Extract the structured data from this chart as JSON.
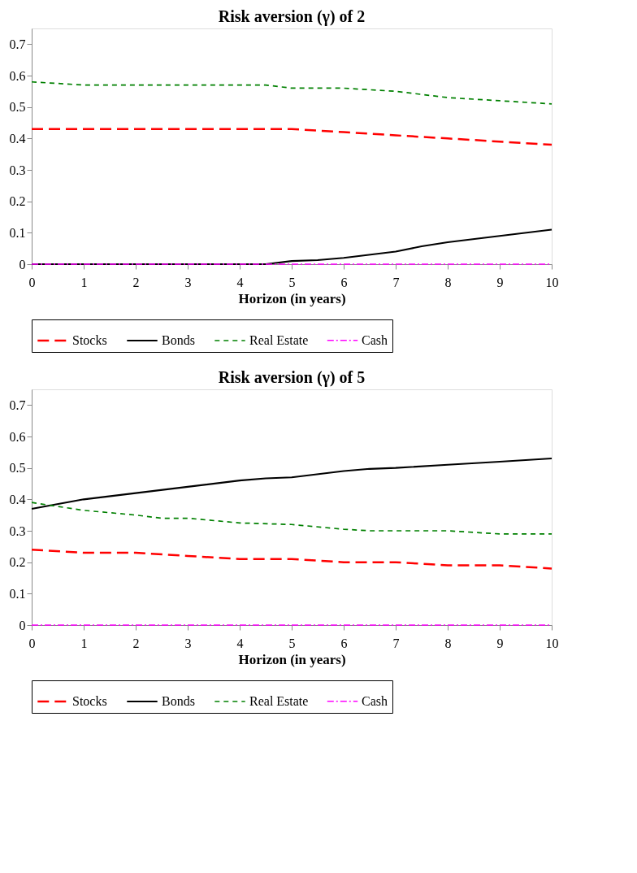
{
  "chart_data": [
    {
      "type": "line",
      "title": "Risk aversion (γ) of 2",
      "xlabel": "Horizon (in years)",
      "xlim": [
        0,
        10
      ],
      "xticks": [
        0,
        1,
        2,
        3,
        4,
        5,
        6,
        7,
        8,
        9,
        10
      ],
      "ylim": [
        0,
        0.75
      ],
      "yticks": [
        0,
        0.1,
        0.2,
        0.3,
        0.4,
        0.5,
        0.6,
        0.7
      ],
      "grid": false,
      "legend": "bottom",
      "series": [
        {
          "name": "Stocks",
          "color": "#ff0000",
          "line_style": "dashed",
          "x": [
            0,
            1,
            2,
            3,
            4,
            5,
            6,
            7,
            8,
            9,
            10
          ],
          "values": [
            0.43,
            0.43,
            0.43,
            0.43,
            0.43,
            0.43,
            0.42,
            0.41,
            0.4,
            0.39,
            0.38
          ]
        },
        {
          "name": "Bonds",
          "color": "#000000",
          "line_style": "solid",
          "x": [
            0,
            1,
            2,
            3,
            4,
            4.5,
            5,
            5.5,
            6,
            7,
            7.5,
            8,
            9,
            10
          ],
          "values": [
            0,
            0,
            0,
            0,
            0,
            0,
            0.01,
            0.013,
            0.02,
            0.04,
            0.057,
            0.07,
            0.09,
            0.11
          ]
        },
        {
          "name": "Real Estate",
          "color": "#008000",
          "line_style": "dotted",
          "x": [
            0,
            1,
            2,
            3,
            4,
            4.5,
            5,
            6,
            7,
            7.5,
            8,
            9,
            10
          ],
          "values": [
            0.58,
            0.57,
            0.57,
            0.57,
            0.57,
            0.57,
            0.56,
            0.56,
            0.55,
            0.54,
            0.53,
            0.52,
            0.51
          ]
        },
        {
          "name": "Cash",
          "color": "#ff00ff",
          "line_style": "dashdot",
          "x": [
            0,
            10
          ],
          "values": [
            0,
            0
          ]
        }
      ]
    },
    {
      "type": "line",
      "title": "Risk aversion (γ) of 5",
      "xlabel": "Horizon (in years)",
      "xlim": [
        0,
        10
      ],
      "xticks": [
        0,
        1,
        2,
        3,
        4,
        5,
        6,
        7,
        8,
        9,
        10
      ],
      "ylim": [
        0,
        0.75
      ],
      "yticks": [
        0,
        0.1,
        0.2,
        0.3,
        0.4,
        0.5,
        0.6,
        0.7
      ],
      "grid": false,
      "legend": "bottom",
      "series": [
        {
          "name": "Stocks",
          "color": "#ff0000",
          "line_style": "dashed",
          "x": [
            0,
            1,
            2,
            3,
            4,
            5,
            6,
            7,
            8,
            9,
            10
          ],
          "values": [
            0.24,
            0.23,
            0.23,
            0.22,
            0.21,
            0.21,
            0.2,
            0.2,
            0.19,
            0.19,
            0.18
          ]
        },
        {
          "name": "Bonds",
          "color": "#000000",
          "line_style": "solid",
          "x": [
            0,
            1,
            2,
            3,
            4,
            4.5,
            5,
            6,
            6.5,
            7,
            8,
            9,
            10
          ],
          "values": [
            0.37,
            0.4,
            0.42,
            0.44,
            0.46,
            0.467,
            0.47,
            0.49,
            0.497,
            0.5,
            0.51,
            0.52,
            0.53
          ]
        },
        {
          "name": "Real Estate",
          "color": "#008000",
          "line_style": "dotted",
          "x": [
            0,
            1,
            2,
            2.5,
            3,
            4,
            5,
            6,
            6.5,
            7,
            8,
            9,
            10
          ],
          "values": [
            0.39,
            0.365,
            0.35,
            0.34,
            0.34,
            0.325,
            0.32,
            0.305,
            0.3,
            0.3,
            0.3,
            0.29,
            0.29
          ]
        },
        {
          "name": "Cash",
          "color": "#ff00ff",
          "line_style": "dashdot",
          "x": [
            0,
            10
          ],
          "values": [
            0,
            0
          ]
        }
      ]
    }
  ]
}
